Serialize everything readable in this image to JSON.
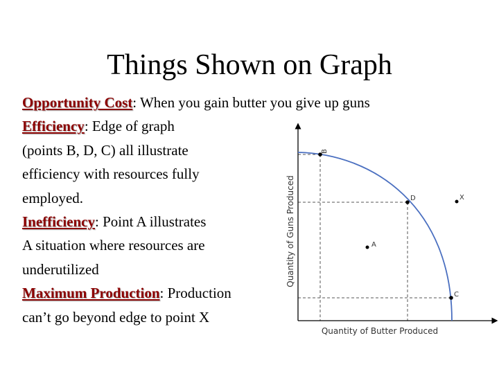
{
  "slide": {
    "title": "Things Shown on Graph",
    "lines": [
      {
        "term": "Opportunity Cost",
        "rest": ":  When you gain butter you give up guns"
      },
      {
        "term": "Efficiency",
        "rest": ":  Edge of graph"
      },
      {
        "term": "",
        "rest": "(points B, D, C) all illustrate"
      },
      {
        "term": "",
        "rest": "efficiency with resources fully"
      },
      {
        "term": "",
        "rest": "employed."
      },
      {
        "term": "Inefficiency",
        "rest": ": Point A illustrates"
      },
      {
        "term": "",
        "rest": "A situation where resources are"
      },
      {
        "term": "",
        "rest": "underutilized"
      },
      {
        "term": "Maximum Production",
        "rest": ":  Production"
      },
      {
        "term": "",
        "rest": "can’t go beyond edge to point X"
      }
    ]
  },
  "graph": {
    "ylabel": "Quantity of Guns Produced",
    "xlabel": "Quantity of Butter Produced",
    "points": {
      "b": "B",
      "d": "D",
      "c": "C",
      "a": "A",
      "x": "X"
    },
    "colors": {
      "curve": "#4a6fc0",
      "axis": "#000000",
      "guide": "#555555"
    }
  }
}
